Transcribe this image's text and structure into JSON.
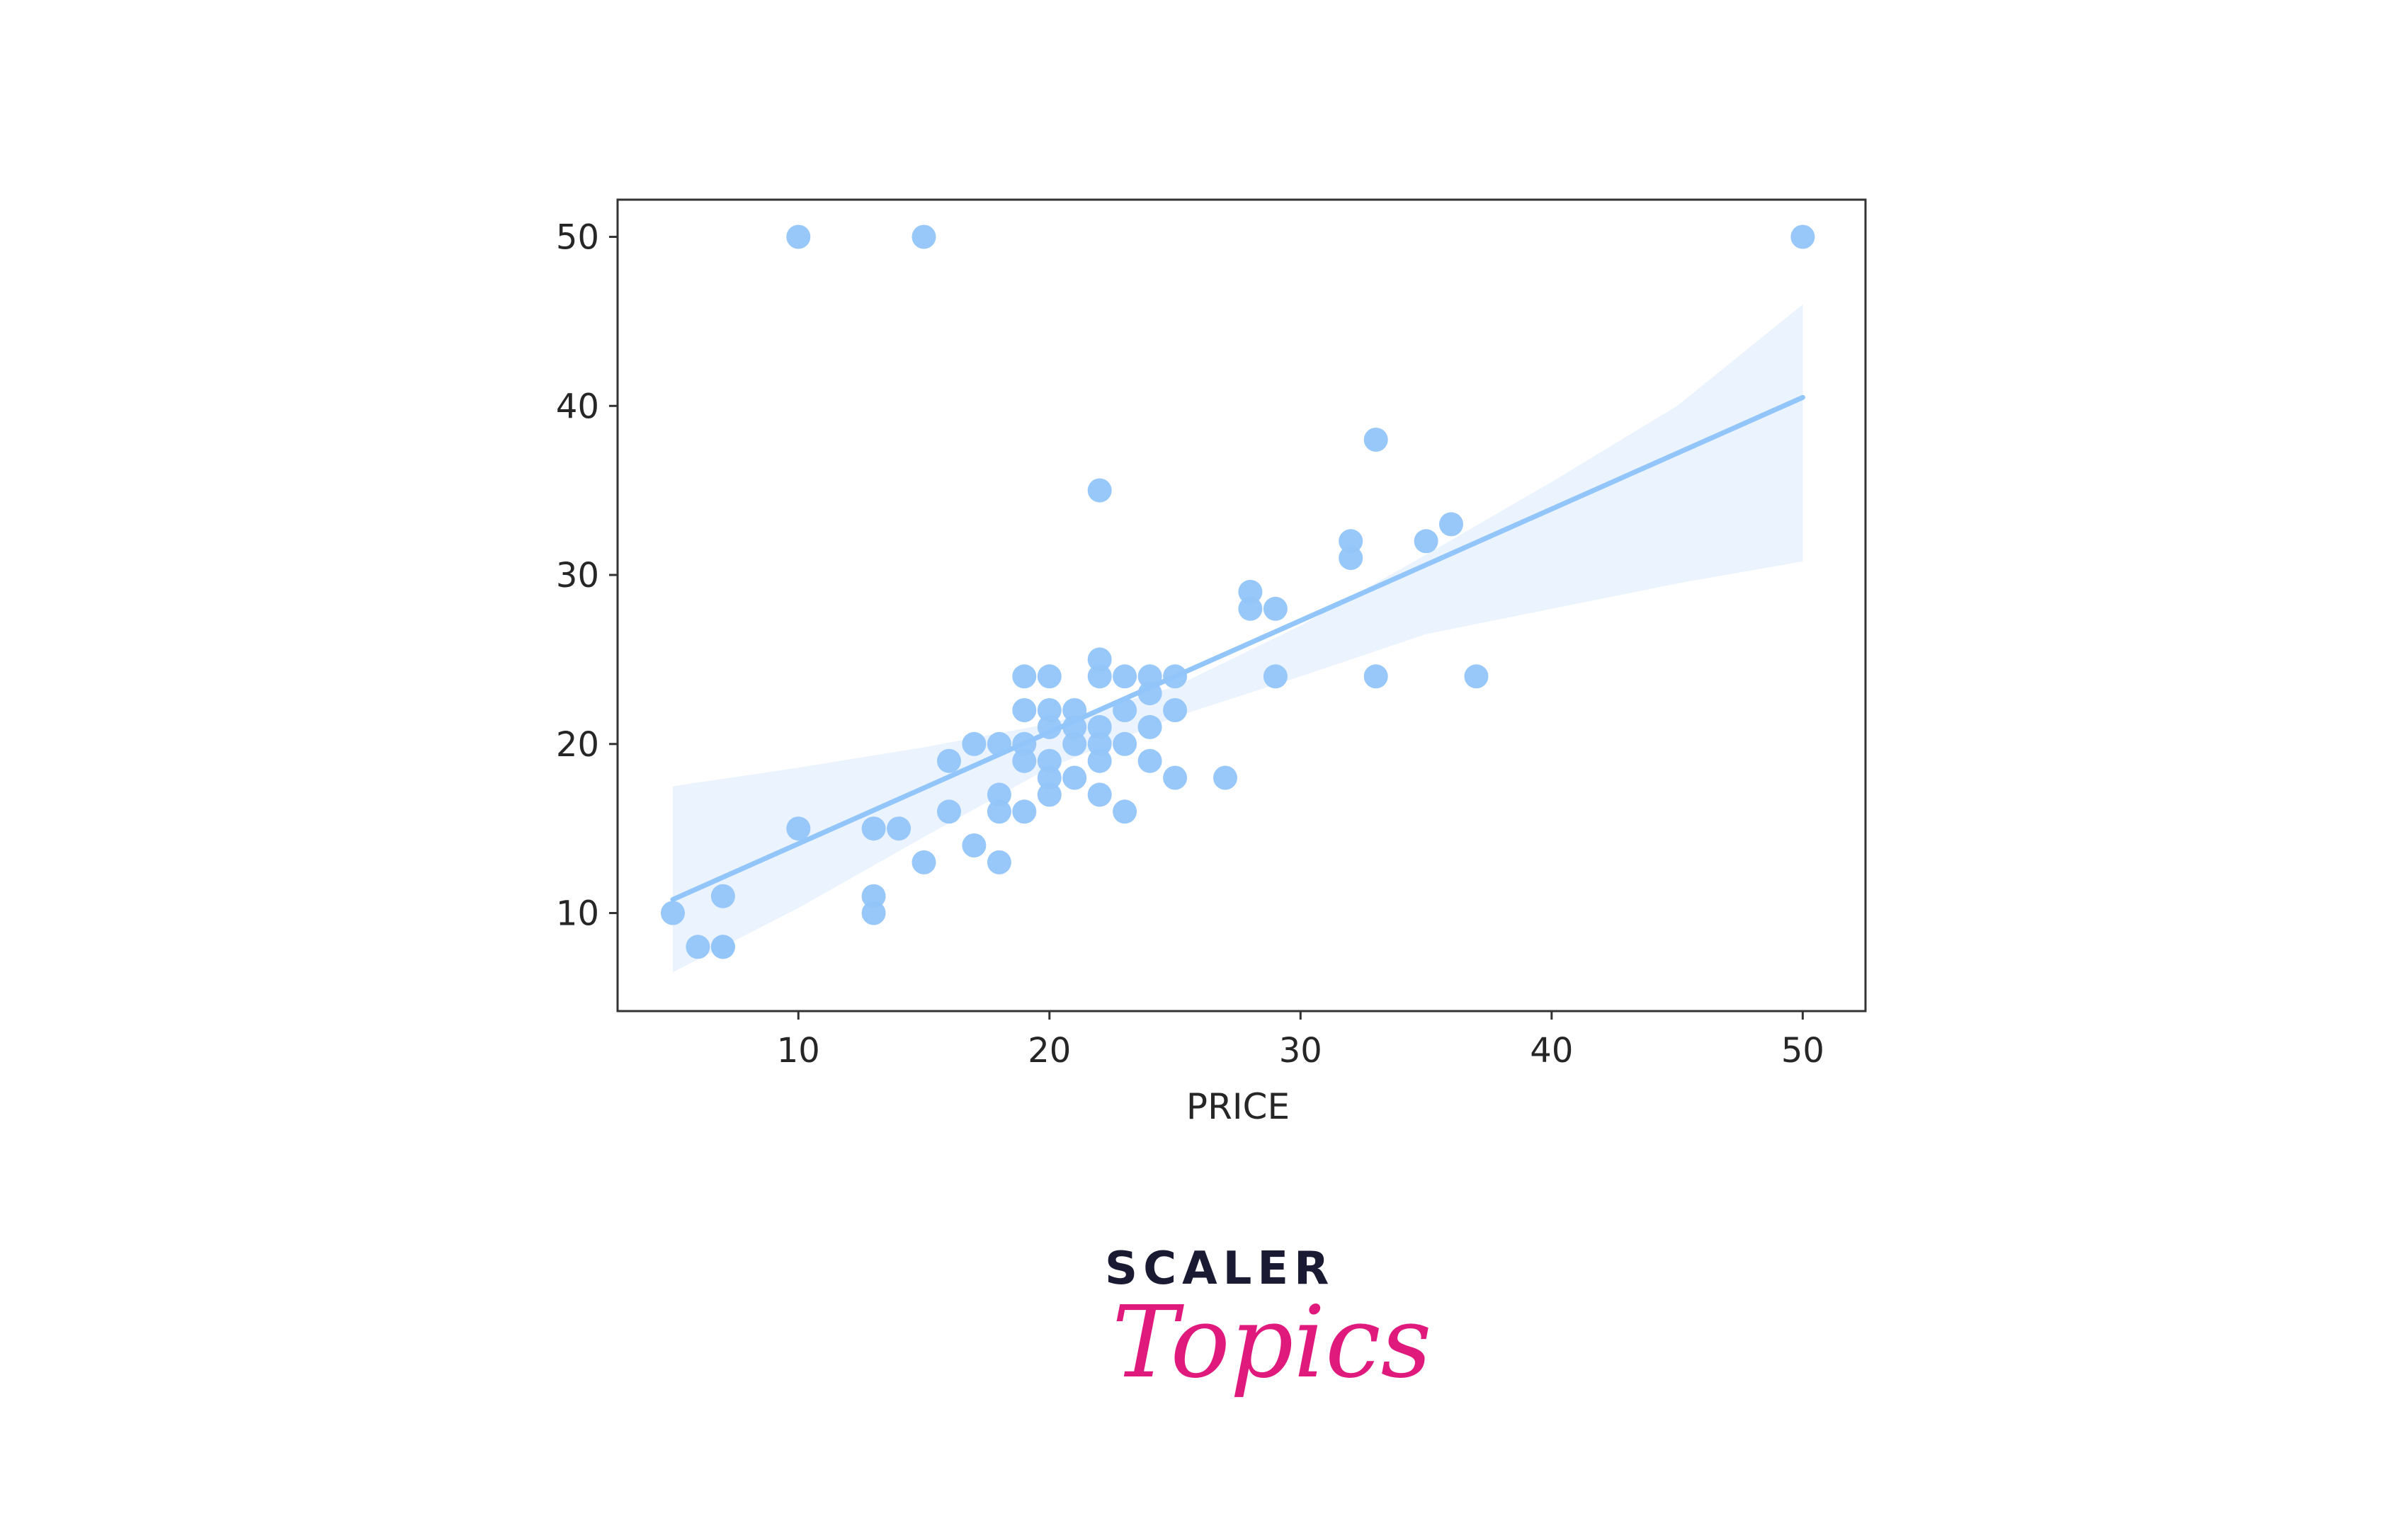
{
  "chart_data": {
    "type": "scatter",
    "title": "",
    "xlabel": "PRICE",
    "ylabel": "",
    "xlim": [
      2.8,
      52.5
    ],
    "ylim": [
      4.2,
      52.2
    ],
    "xticks": [
      10,
      20,
      30,
      40,
      50
    ],
    "yticks": [
      10,
      20,
      30,
      40,
      50
    ],
    "grid": false,
    "point_color": "#92c5f9",
    "band_color": "#eaf3fe",
    "line_color": "#92c5f9",
    "points": [
      [
        5,
        10
      ],
      [
        6,
        8
      ],
      [
        7,
        8
      ],
      [
        7,
        8
      ],
      [
        7,
        11
      ],
      [
        10,
        15
      ],
      [
        10,
        50
      ],
      [
        13,
        10
      ],
      [
        13,
        11
      ],
      [
        13,
        15
      ],
      [
        14,
        15
      ],
      [
        15,
        13
      ],
      [
        15,
        50
      ],
      [
        16,
        16
      ],
      [
        16,
        19
      ],
      [
        17,
        14
      ],
      [
        17,
        20
      ],
      [
        18,
        13
      ],
      [
        18,
        16
      ],
      [
        18,
        17
      ],
      [
        18,
        20
      ],
      [
        19,
        16
      ],
      [
        19,
        19
      ],
      [
        19,
        20
      ],
      [
        19,
        22
      ],
      [
        19,
        24
      ],
      [
        20,
        17
      ],
      [
        20,
        18
      ],
      [
        20,
        19
      ],
      [
        20,
        21
      ],
      [
        20,
        22
      ],
      [
        20,
        24
      ],
      [
        21,
        18
      ],
      [
        21,
        20
      ],
      [
        21,
        21
      ],
      [
        21,
        22
      ],
      [
        22,
        17
      ],
      [
        22,
        19
      ],
      [
        22,
        20
      ],
      [
        22,
        21
      ],
      [
        22,
        24
      ],
      [
        22,
        25
      ],
      [
        22,
        35
      ],
      [
        23,
        16
      ],
      [
        23,
        20
      ],
      [
        23,
        22
      ],
      [
        23,
        24
      ],
      [
        24,
        19
      ],
      [
        24,
        21
      ],
      [
        24,
        23
      ],
      [
        24,
        24
      ],
      [
        25,
        18
      ],
      [
        25,
        22
      ],
      [
        25,
        24
      ],
      [
        27,
        18
      ],
      [
        28,
        28
      ],
      [
        28,
        29
      ],
      [
        29,
        24
      ],
      [
        29,
        28
      ],
      [
        32,
        31
      ],
      [
        32,
        32
      ],
      [
        33,
        24
      ],
      [
        33,
        38
      ],
      [
        35,
        32
      ],
      [
        36,
        33
      ],
      [
        37,
        24
      ],
      [
        50,
        50
      ]
    ],
    "regression_line": [
      [
        5,
        10.8
      ],
      [
        50,
        40.5
      ]
    ],
    "confidence_band": {
      "x": [
        5,
        10,
        15,
        20,
        25,
        30,
        35,
        40,
        45,
        50
      ],
      "upper": [
        17.5,
        18.6,
        19.8,
        21.2,
        23.4,
        27.0,
        31.2,
        35.5,
        40.0,
        46.0
      ],
      "lower": [
        6.5,
        10.3,
        14.5,
        18.6,
        21.6,
        24.0,
        26.5,
        28.0,
        29.5,
        30.8
      ]
    }
  },
  "logo": {
    "top": "SCALER",
    "bottom": "Topics"
  }
}
